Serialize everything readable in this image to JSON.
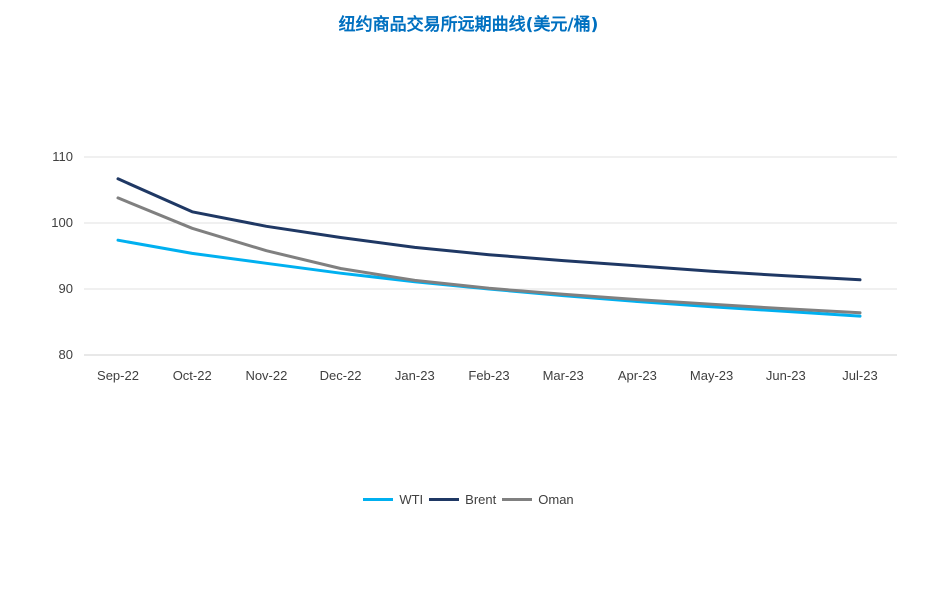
{
  "chart_data": {
    "type": "line",
    "title": "纽约商品交易所远期曲线(美元/桶)",
    "categories": [
      "Sep-22",
      "Oct-22",
      "Nov-22",
      "Dec-22",
      "Jan-23",
      "Feb-23",
      "Mar-23",
      "Apr-23",
      "May-23",
      "Jun-23",
      "Jul-23"
    ],
    "series": [
      {
        "name": "WTI",
        "color": "#00b0f0",
        "values": [
          97.4,
          95.4,
          93.9,
          92.4,
          91.1,
          90.0,
          89.0,
          88.1,
          87.3,
          86.6,
          85.9
        ]
      },
      {
        "name": "Brent",
        "color": "#1f3864",
        "values": [
          106.7,
          101.7,
          99.5,
          97.8,
          96.3,
          95.2,
          94.3,
          93.5,
          92.7,
          92.0,
          91.4
        ]
      },
      {
        "name": "Oman",
        "color": "#808080",
        "values": [
          103.8,
          99.2,
          95.8,
          93.1,
          91.3,
          90.1,
          89.2,
          88.4,
          87.7,
          87.0,
          86.4
        ]
      }
    ],
    "y_ticks": [
      80,
      90,
      100,
      110
    ],
    "ylim": [
      80,
      110
    ],
    "grid": true,
    "legend_position": "bottom"
  }
}
